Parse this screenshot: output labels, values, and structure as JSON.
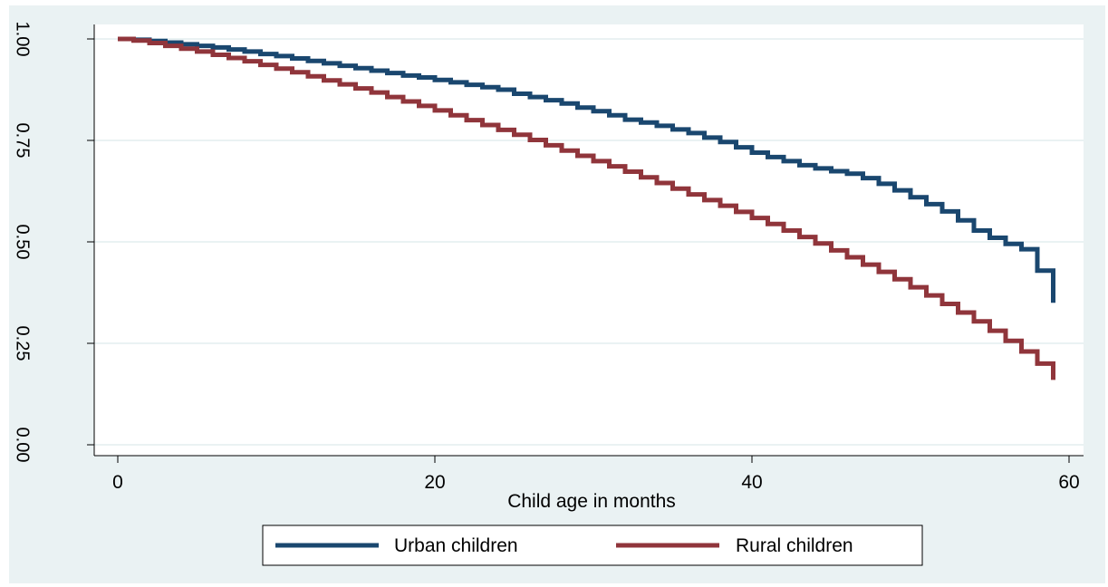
{
  "chart_data": {
    "type": "line",
    "title": "",
    "xlabel": "Child age in months",
    "ylabel": "",
    "xlim": [
      0,
      60
    ],
    "ylim": [
      0,
      1
    ],
    "x_ticks": [
      0,
      20,
      40,
      60
    ],
    "x_tick_labels": [
      "0",
      "20",
      "40",
      "60"
    ],
    "y_ticks": [
      0,
      0.25,
      0.5,
      0.75,
      1
    ],
    "y_tick_labels": [
      "0.00",
      "0.25",
      "0.50",
      "0.75",
      "1.00"
    ],
    "grid": true,
    "step": true,
    "legend_position": "bottom",
    "series": [
      {
        "name": "Urban children",
        "color": "#1a476f",
        "x": [
          0,
          1,
          2,
          3,
          4,
          5,
          6,
          7,
          8,
          9,
          10,
          11,
          12,
          13,
          14,
          15,
          16,
          17,
          18,
          19,
          20,
          21,
          22,
          23,
          24,
          25,
          26,
          27,
          28,
          29,
          30,
          31,
          32,
          33,
          34,
          35,
          36,
          37,
          38,
          39,
          40,
          41,
          42,
          43,
          44,
          45,
          46,
          47,
          48,
          49,
          50,
          51,
          52,
          53,
          54,
          55,
          56,
          57,
          58,
          59
        ],
        "y": [
          1.0,
          0.998,
          0.995,
          0.991,
          0.987,
          0.983,
          0.979,
          0.974,
          0.969,
          0.963,
          0.958,
          0.952,
          0.946,
          0.94,
          0.934,
          0.928,
          0.922,
          0.916,
          0.91,
          0.905,
          0.899,
          0.893,
          0.887,
          0.881,
          0.875,
          0.865,
          0.857,
          0.849,
          0.841,
          0.831,
          0.822,
          0.812,
          0.801,
          0.794,
          0.786,
          0.777,
          0.768,
          0.757,
          0.746,
          0.733,
          0.72,
          0.709,
          0.699,
          0.689,
          0.681,
          0.674,
          0.668,
          0.657,
          0.643,
          0.627,
          0.61,
          0.593,
          0.575,
          0.553,
          0.528,
          0.51,
          0.495,
          0.482,
          0.429,
          0.35
        ]
      },
      {
        "name": "Rural children",
        "color": "#90353b",
        "x": [
          0,
          1,
          2,
          3,
          4,
          5,
          6,
          7,
          8,
          9,
          10,
          11,
          12,
          13,
          14,
          15,
          16,
          17,
          18,
          19,
          20,
          21,
          22,
          23,
          24,
          25,
          26,
          27,
          28,
          29,
          30,
          31,
          32,
          33,
          34,
          35,
          36,
          37,
          38,
          39,
          40,
          41,
          42,
          43,
          44,
          45,
          46,
          47,
          48,
          49,
          50,
          51,
          52,
          53,
          54,
          55,
          56,
          57,
          58,
          59
        ],
        "y": [
          1.0,
          0.996,
          0.99,
          0.983,
          0.976,
          0.969,
          0.961,
          0.953,
          0.945,
          0.936,
          0.927,
          0.918,
          0.908,
          0.898,
          0.888,
          0.878,
          0.868,
          0.857,
          0.846,
          0.835,
          0.824,
          0.812,
          0.8,
          0.788,
          0.776,
          0.764,
          0.751,
          0.738,
          0.725,
          0.712,
          0.699,
          0.686,
          0.673,
          0.659,
          0.645,
          0.631,
          0.617,
          0.603,
          0.589,
          0.574,
          0.559,
          0.544,
          0.528,
          0.512,
          0.496,
          0.479,
          0.462,
          0.444,
          0.426,
          0.408,
          0.388,
          0.368,
          0.347,
          0.326,
          0.304,
          0.281,
          0.256,
          0.23,
          0.2,
          0.16
        ]
      }
    ]
  }
}
